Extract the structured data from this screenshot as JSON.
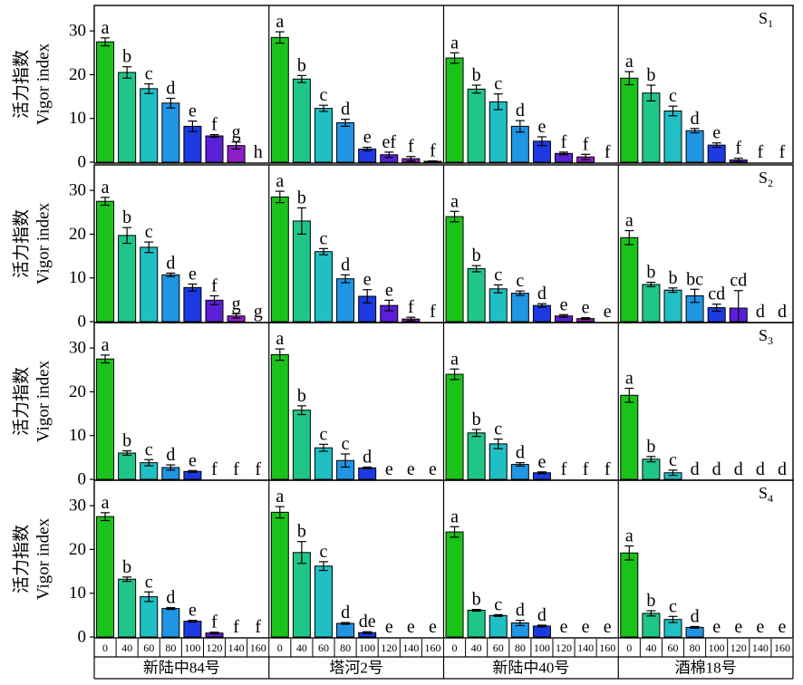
{
  "chart_data": {
    "type": "bar",
    "ylabel_cn": "活力指数",
    "ylabel_en": "Vigor index",
    "ylim": [
      0,
      35
    ],
    "yticks": [
      0,
      10,
      20,
      30
    ],
    "x_ticks": [
      "0",
      "40",
      "60",
      "80",
      "100",
      "120",
      "140",
      "160"
    ],
    "cultivars": [
      "新陆中84号",
      "塔河2号",
      "新陆中40号",
      "酒棉18号"
    ],
    "bar_colors": [
      "#1ac31a",
      "#20c688",
      "#1fbfc4",
      "#1f95e4",
      "#1c3ae0",
      "#5a1fd6",
      "#8e1fc6",
      "#7a25b8"
    ],
    "panels": [
      {
        "tag": "S",
        "tag_sub": "1",
        "groups": [
          {
            "values": [
              27.5,
              20.5,
              16.8,
              13.5,
              8.2,
              6.0,
              3.8,
              0
            ],
            "errors": [
              0.9,
              1.3,
              1.1,
              1.1,
              1.2,
              0.3,
              0.8,
              0
            ],
            "letters": [
              "a",
              "b",
              "c",
              "d",
              "e",
              "f",
              "g",
              "h"
            ]
          },
          {
            "values": [
              28.5,
              19.0,
              12.3,
              9.0,
              3.0,
              1.7,
              0.8,
              0.2
            ],
            "errors": [
              1.3,
              0.8,
              0.7,
              0.8,
              0.4,
              0.6,
              0.5,
              0.1
            ],
            "letters": [
              "a",
              "b",
              "c",
              "d",
              "e",
              "ef",
              "f",
              "f"
            ]
          },
          {
            "values": [
              23.8,
              16.7,
              13.8,
              8.2,
              4.8,
              2.0,
              1.2,
              0
            ],
            "errors": [
              1.2,
              0.9,
              1.8,
              1.3,
              1.0,
              0.3,
              0.6,
              0
            ],
            "letters": [
              "a",
              "b",
              "c",
              "d",
              "e",
              "f",
              "f",
              "f"
            ]
          },
          {
            "values": [
              19.2,
              15.8,
              11.7,
              7.2,
              3.9,
              0.5,
              0,
              0
            ],
            "errors": [
              1.5,
              1.8,
              1.1,
              0.5,
              0.5,
              0.4,
              0,
              0
            ],
            "letters": [
              "a",
              "b",
              "c",
              "d",
              "e",
              "f",
              "f",
              "f"
            ]
          }
        ]
      },
      {
        "tag": "S",
        "tag_sub": "2",
        "groups": [
          {
            "values": [
              27.5,
              19.7,
              17.0,
              10.7,
              7.8,
              4.9,
              1.3,
              0
            ],
            "errors": [
              0.9,
              1.8,
              1.2,
              0.4,
              0.8,
              1.0,
              0.5,
              0
            ],
            "letters": [
              "a",
              "b",
              "c",
              "d",
              "e",
              "f",
              "g",
              "g"
            ]
          },
          {
            "values": [
              28.5,
              23.0,
              16.0,
              9.8,
              5.8,
              3.7,
              0.6,
              0
            ],
            "errors": [
              1.3,
              3.0,
              0.7,
              0.9,
              1.5,
              1.2,
              0.4,
              0
            ],
            "letters": [
              "a",
              "b",
              "c",
              "d",
              "e",
              "e",
              "f",
              "f"
            ]
          },
          {
            "values": [
              24.0,
              12.1,
              7.5,
              6.5,
              3.7,
              1.3,
              0.7,
              0
            ],
            "errors": [
              1.2,
              0.7,
              0.9,
              0.5,
              0.4,
              0.3,
              0.2,
              0
            ],
            "letters": [
              "a",
              "b",
              "c",
              "c",
              "d",
              "e",
              "e",
              "e"
            ]
          },
          {
            "values": [
              19.2,
              8.5,
              7.2,
              5.9,
              3.2,
              3.1,
              0,
              0
            ],
            "errors": [
              1.6,
              0.5,
              0.5,
              1.5,
              0.8,
              4.0,
              0,
              0
            ],
            "letters": [
              "a",
              "b",
              "b",
              "bc",
              "cd",
              "cd",
              "d",
              "d"
            ]
          }
        ]
      },
      {
        "tag": "S",
        "tag_sub": "3",
        "groups": [
          {
            "values": [
              27.5,
              6.0,
              3.8,
              2.7,
              1.8,
              0,
              0,
              0
            ],
            "errors": [
              0.9,
              0.5,
              0.7,
              0.6,
              0.2,
              0,
              0,
              0
            ],
            "letters": [
              "a",
              "b",
              "c",
              "d",
              "e",
              "f",
              "f",
              "f"
            ]
          },
          {
            "values": [
              28.5,
              15.8,
              7.2,
              4.3,
              2.6,
              0,
              0,
              0
            ],
            "errors": [
              1.3,
              1.0,
              0.8,
              1.5,
              0.2,
              0,
              0,
              0
            ],
            "letters": [
              "a",
              "b",
              "c",
              "c",
              "d",
              "e",
              "e",
              "e"
            ]
          },
          {
            "values": [
              24.0,
              10.6,
              8.1,
              3.4,
              1.5,
              0,
              0,
              0
            ],
            "errors": [
              1.2,
              0.8,
              1.1,
              0.4,
              0.2,
              0,
              0,
              0
            ],
            "letters": [
              "a",
              "b",
              "c",
              "d",
              "e",
              "f",
              "f",
              "f"
            ]
          },
          {
            "values": [
              19.2,
              4.6,
              1.5,
              0,
              0,
              0,
              0,
              0
            ],
            "errors": [
              1.6,
              0.6,
              0.6,
              0,
              0,
              0,
              0,
              0
            ],
            "letters": [
              "a",
              "b",
              "c",
              "d",
              "d",
              "d",
              "d",
              "d"
            ]
          }
        ]
      },
      {
        "tag": "S",
        "tag_sub": "4",
        "groups": [
          {
            "values": [
              27.5,
              13.2,
              9.2,
              6.5,
              3.6,
              0.9,
              0,
              0
            ],
            "errors": [
              0.9,
              0.5,
              1.1,
              0.2,
              0.2,
              0.2,
              0,
              0
            ],
            "letters": [
              "a",
              "b",
              "c",
              "d",
              "e",
              "f",
              "f",
              "f"
            ]
          },
          {
            "values": [
              28.5,
              19.3,
              16.2,
              3.1,
              1.0,
              0,
              0,
              0
            ],
            "errors": [
              1.3,
              2.5,
              1.0,
              0.2,
              0.2,
              0,
              0,
              0
            ],
            "letters": [
              "a",
              "b",
              "c",
              "d",
              "de",
              "e",
              "e",
              "e"
            ]
          },
          {
            "values": [
              24.0,
              6.1,
              4.9,
              3.2,
              2.5,
              0,
              0,
              0
            ],
            "errors": [
              1.2,
              0.2,
              0.2,
              0.6,
              0.2,
              0,
              0,
              0
            ],
            "letters": [
              "a",
              "b",
              "c",
              "d",
              "d",
              "e",
              "e",
              "e"
            ]
          },
          {
            "values": [
              19.2,
              5.4,
              4.0,
              2.2,
              0,
              0,
              0,
              0
            ],
            "errors": [
              1.6,
              0.6,
              0.7,
              0.2,
              0,
              0,
              0,
              0
            ],
            "letters": [
              "a",
              "b",
              "c",
              "d",
              "e",
              "e",
              "e",
              "e"
            ]
          }
        ]
      }
    ]
  }
}
